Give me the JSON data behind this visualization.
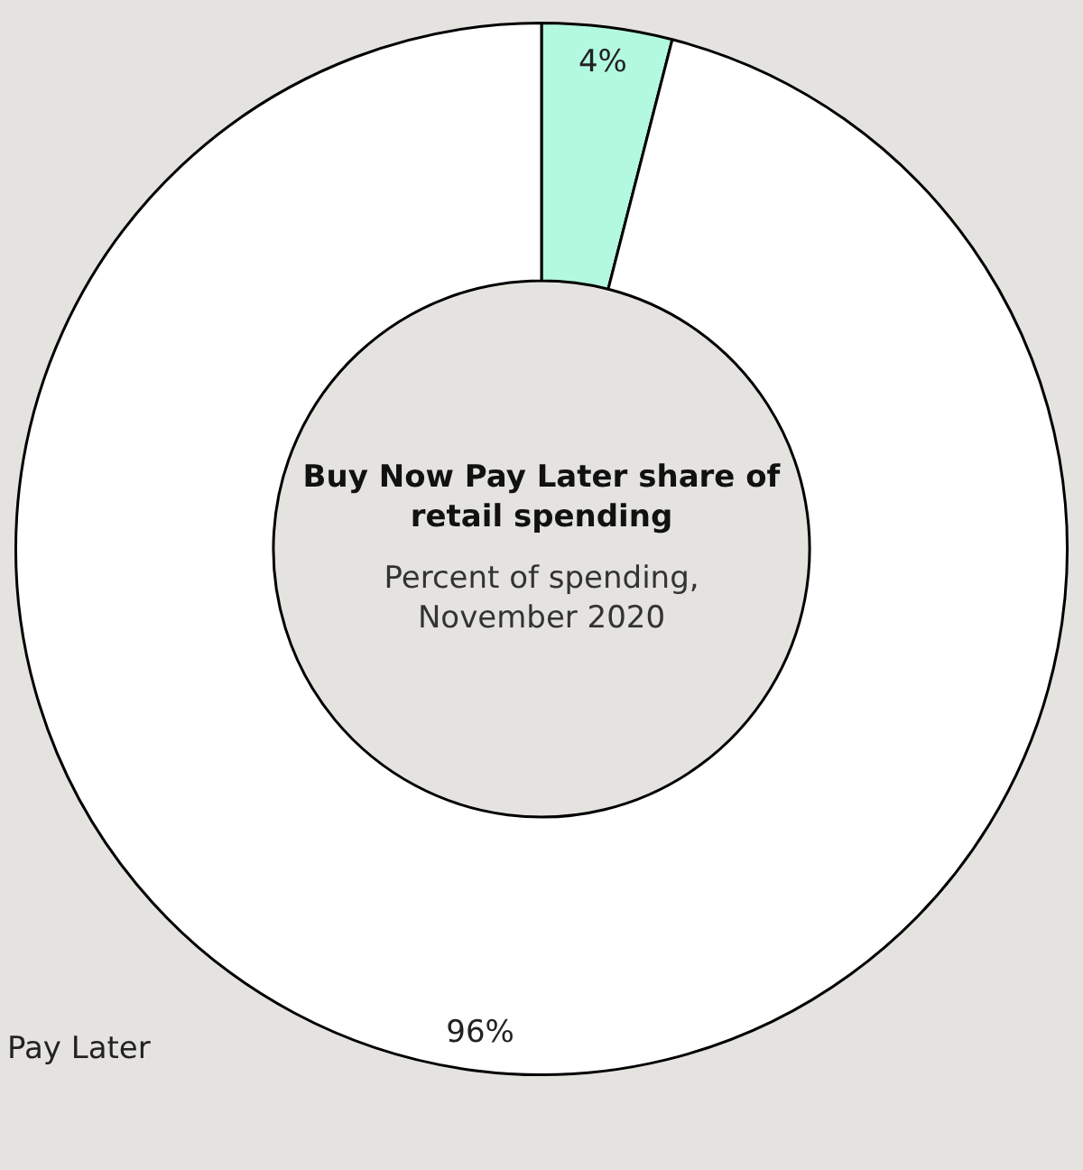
{
  "chart_data": {
    "type": "donut",
    "title": "Buy Now Pay Later share of retail spending",
    "subtitle": "Percent of spending, November 2020",
    "categories": [
      null,
      "Pay Later"
    ],
    "values": [
      4,
      96
    ],
    "colors": [
      "#b3f9e0",
      "#ffffff"
    ],
    "value_labels": [
      "4%",
      "96%"
    ],
    "legend": false
  }
}
